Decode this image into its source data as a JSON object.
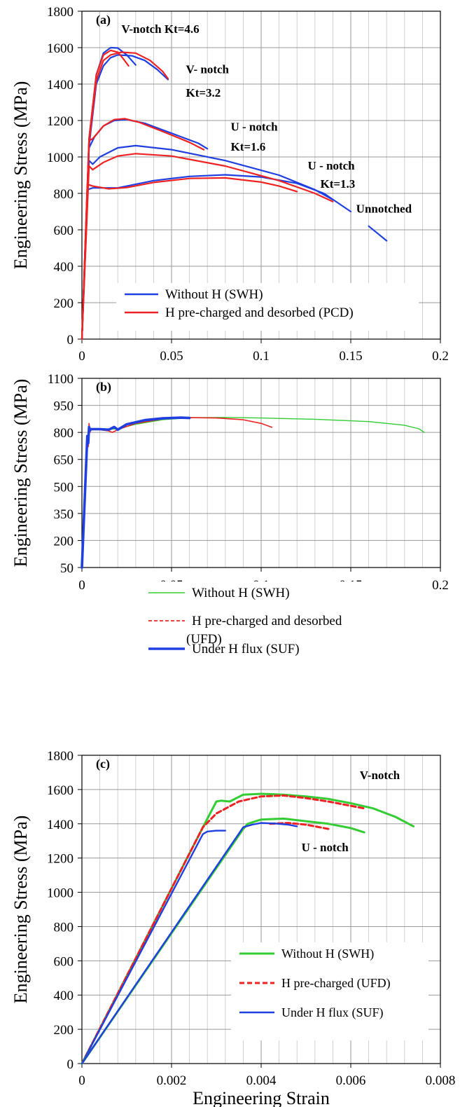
{
  "chart_data": [
    {
      "type": "line",
      "panel_label": "(a)",
      "ylabel": "Engineering  Stress  (MPa)",
      "xlabel": "",
      "xlim": [
        0,
        0.2
      ],
      "ylim": [
        0,
        1800
      ],
      "x_ticks": [
        0,
        0.05,
        0.1,
        0.15,
        0.2
      ],
      "x_tick_labels": [
        "0",
        "0.05",
        "0.1",
        "0.15",
        "0.2"
      ],
      "y_ticks": [
        0,
        200,
        400,
        600,
        800,
        1000,
        1200,
        1400,
        1600,
        1800
      ],
      "y_tick_labels": [
        "0",
        "200",
        "400",
        "600",
        "800",
        "1000",
        "1200",
        "1400",
        "1600",
        "1800"
      ],
      "grid": true,
      "legend_position": "bottom-center",
      "legend": [
        {
          "label": "Without H (SWH)",
          "color": "#1f3fe0"
        },
        {
          "label": "H pre-charged and desorbed (PCD)",
          "color": "#ee2222"
        }
      ],
      "annotations": [
        {
          "text": "V-notch Kt=4.6",
          "x": 0.022,
          "y": 1680
        },
        {
          "text": "V- notch",
          "x": 0.058,
          "y": 1460
        },
        {
          "text": "Kt=3.2",
          "x": 0.058,
          "y": 1330
        },
        {
          "text": "U - notch",
          "x": 0.083,
          "y": 1145
        },
        {
          "text": "Kt=1.6",
          "x": 0.083,
          "y": 1035
        },
        {
          "text": "U - notch",
          "x": 0.126,
          "y": 930
        },
        {
          "text": "Kt=1.3",
          "x": 0.133,
          "y": 830
        },
        {
          "text": "Unnotched",
          "x": 0.153,
          "y": 695
        }
      ],
      "series": [
        {
          "color": "#1f3fe0",
          "dash": "",
          "width": 2.2,
          "x": [
            0,
            0.004,
            0.008,
            0.012,
            0.016,
            0.02,
            0.025,
            0.03
          ],
          "y": [
            0,
            1100,
            1450,
            1570,
            1600,
            1598,
            1560,
            1505
          ]
        },
        {
          "color": "#1f3fe0",
          "dash": "",
          "width": 2.2,
          "x": [
            0,
            0.004,
            0.008,
            0.012,
            0.016,
            0.02,
            0.028,
            0.035,
            0.042,
            0.048
          ],
          "y": [
            0,
            1060,
            1400,
            1500,
            1545,
            1560,
            1555,
            1530,
            1480,
            1425
          ]
        },
        {
          "color": "#1f3fe0",
          "dash": "",
          "width": 2.2,
          "x": [
            0,
            0.004,
            0.007,
            0.012,
            0.018,
            0.025,
            0.035,
            0.05,
            0.065,
            0.07
          ],
          "y": [
            0,
            1050,
            1110,
            1170,
            1200,
            1205,
            1185,
            1130,
            1075,
            1045
          ]
        },
        {
          "color": "#1f3fe0",
          "dash": "",
          "width": 2.2,
          "x": [
            0,
            0.004,
            0.006,
            0.01,
            0.02,
            0.03,
            0.05,
            0.08,
            0.11,
            0.13,
            0.14
          ],
          "y": [
            0,
            980,
            960,
            1000,
            1050,
            1062,
            1040,
            980,
            900,
            820,
            765
          ]
        },
        {
          "color": "#1f3fe0",
          "dash": "",
          "width": 2.2,
          "x": [
            0,
            0.003,
            0.006,
            0.02,
            0.04,
            0.06,
            0.08,
            0.1,
            0.12,
            0.135,
            0.15
          ],
          "y": [
            0,
            820,
            830,
            830,
            870,
            893,
            902,
            890,
            855,
            800,
            700
          ]
        },
        {
          "color": "#1f3fe0",
          "dash": "",
          "width": 2.2,
          "x": [
            0.16,
            0.165,
            0.17
          ],
          "y": [
            620,
            580,
            540
          ]
        },
        {
          "color": "#ee2222",
          "dash": "",
          "width": 2.2,
          "x": [
            0,
            0.004,
            0.008,
            0.012,
            0.016,
            0.02,
            0.023,
            0.026
          ],
          "y": [
            0,
            1100,
            1450,
            1560,
            1585,
            1575,
            1540,
            1500
          ]
        },
        {
          "color": "#ee2222",
          "dash": "",
          "width": 2.2,
          "x": [
            0,
            0.004,
            0.008,
            0.012,
            0.016,
            0.022,
            0.03,
            0.038,
            0.045,
            0.048
          ],
          "y": [
            0,
            1080,
            1420,
            1530,
            1560,
            1575,
            1570,
            1530,
            1470,
            1430
          ]
        },
        {
          "color": "#ee2222",
          "dash": "",
          "width": 2.2,
          "x": [
            0,
            0.004,
            0.006,
            0.012,
            0.018,
            0.024,
            0.032,
            0.045,
            0.06,
            0.068
          ],
          "y": [
            0,
            1090,
            1100,
            1170,
            1205,
            1210,
            1190,
            1140,
            1080,
            1040
          ]
        },
        {
          "color": "#ee2222",
          "dash": "",
          "width": 2.2,
          "x": [
            0,
            0.004,
            0.006,
            0.012,
            0.02,
            0.03,
            0.05,
            0.08,
            0.11,
            0.13,
            0.14
          ],
          "y": [
            0,
            950,
            930,
            970,
            1005,
            1018,
            1005,
            950,
            870,
            800,
            755
          ]
        },
        {
          "color": "#ee2222",
          "dash": "",
          "width": 2.2,
          "x": [
            0,
            0.003,
            0.006,
            0.015,
            0.025,
            0.04,
            0.06,
            0.08,
            0.1,
            0.11,
            0.12
          ],
          "y": [
            0,
            850,
            840,
            825,
            832,
            860,
            882,
            885,
            862,
            840,
            810
          ]
        }
      ]
    },
    {
      "type": "line",
      "panel_label": "(b)",
      "ylabel": "Engineering  Stress  (MPa)",
      "xlabel": "",
      "xlim": [
        0,
        0.2
      ],
      "ylim": [
        50,
        1100
      ],
      "x_ticks": [
        0,
        0.05,
        0.1,
        0.15,
        0.2
      ],
      "x_tick_labels": [
        "0",
        "0.05",
        "0.1",
        "0.15",
        "0.2"
      ],
      "y_ticks": [
        50,
        200,
        350,
        500,
        650,
        800,
        950,
        1100
      ],
      "y_tick_labels": [
        "50",
        "200",
        "350",
        "500",
        "650",
        "800",
        "950",
        "1100"
      ],
      "grid": true,
      "legend_position": "bottom-center",
      "legend": [
        {
          "label": "Without H (SWH)",
          "color": "#33cc33",
          "dash": "",
          "width": 1.4
        },
        {
          "label": "H pre-charged and desorbed",
          "label2": "(UFD)",
          "color": "#ee2222",
          "dash": "5,3",
          "width": 1.8
        },
        {
          "label": "Under H flux (SUF)",
          "color": "#1f3fe0",
          "dash": "",
          "width": 3.6
        }
      ],
      "annotations": [],
      "series": [
        {
          "color": "#33cc33",
          "dash": "",
          "width": 1.4,
          "x": [
            0,
            0.003,
            0.004,
            0.01,
            0.02,
            0.03,
            0.045,
            0.06,
            0.08,
            0.1,
            0.13,
            0.16,
            0.18,
            0.188,
            0.191
          ],
          "y": [
            50,
            760,
            815,
            815,
            820,
            845,
            870,
            882,
            883,
            880,
            873,
            860,
            840,
            820,
            800
          ]
        },
        {
          "color": "#ee2222",
          "dash": "",
          "width": 1.6,
          "x": [
            0,
            0.003,
            0.0035,
            0.004,
            0.0045,
            0.005,
            0.01,
            0.015,
            0.017,
            0.02,
            0.03,
            0.045,
            0.06,
            0.075,
            0.09,
            0.1,
            0.106
          ],
          "y": [
            50,
            750,
            720,
            850,
            800,
            815,
            815,
            808,
            800,
            815,
            850,
            875,
            882,
            880,
            870,
            850,
            828
          ]
        },
        {
          "color": "#1f3fe0",
          "dash": "",
          "width": 3.6,
          "x": [
            0,
            0.003,
            0.0035,
            0.004,
            0.0045,
            0.005,
            0.01,
            0.015,
            0.018,
            0.02,
            0.025,
            0.035,
            0.045,
            0.055,
            0.06
          ],
          "y": [
            50,
            780,
            740,
            830,
            810,
            818,
            818,
            815,
            830,
            815,
            845,
            868,
            878,
            882,
            880
          ]
        }
      ]
    },
    {
      "type": "line",
      "panel_label": "(c)",
      "ylabel": "Engineering  Stress  (MPa)",
      "xlabel": "Engineering Strain",
      "xlim": [
        0,
        0.008
      ],
      "ylim": [
        0,
        1800
      ],
      "x_ticks": [
        0,
        0.002,
        0.004,
        0.006,
        0.008
      ],
      "x_tick_labels": [
        "0",
        "0.002",
        "0.004",
        "0.006",
        "0.008"
      ],
      "y_ticks": [
        0,
        200,
        400,
        600,
        800,
        1000,
        1200,
        1400,
        1600,
        1800
      ],
      "y_tick_labels": [
        "0",
        "200",
        "400",
        "600",
        "800",
        "1000",
        "1200",
        "1400",
        "1600",
        "1800"
      ],
      "grid": true,
      "legend_position": "bottom-right",
      "legend": [
        {
          "label": "Without H (SWH)",
          "color": "#33cc33",
          "dash": "",
          "width": 3
        },
        {
          "label": "H pre-charged (UFD)",
          "color": "#ee2222",
          "dash": "7,4",
          "width": 3
        },
        {
          "label": "Under H flux (SUF)",
          "color": "#1f3fe0",
          "dash": "",
          "width": 2.4
        }
      ],
      "annotations": [
        {
          "text": "V-notch",
          "x": 0.0062,
          "y": 1660
        },
        {
          "text": "U - notch",
          "x": 0.0049,
          "y": 1240
        }
      ],
      "series": [
        {
          "color": "#33cc33",
          "dash": "",
          "width": 3,
          "x": [
            0,
            0.0027,
            0.003,
            0.0031,
            0.0033,
            0.0036,
            0.004,
            0.0045,
            0.005,
            0.0055,
            0.006,
            0.0065,
            0.007,
            0.0074
          ],
          "y": [
            0,
            1380,
            1530,
            1535,
            1530,
            1570,
            1575,
            1570,
            1560,
            1545,
            1520,
            1490,
            1440,
            1385
          ]
        },
        {
          "color": "#ee2222",
          "dash": "7,4",
          "width": 3,
          "x": [
            0,
            0.0027,
            0.003,
            0.0035,
            0.004,
            0.0045,
            0.005,
            0.0055,
            0.006,
            0.0063
          ],
          "y": [
            0,
            1380,
            1460,
            1530,
            1560,
            1565,
            1550,
            1530,
            1505,
            1490
          ]
        },
        {
          "color": "#1f3fe0",
          "dash": "",
          "width": 2.4,
          "x": [
            0,
            0.0027,
            0.0028,
            0.003,
            0.0032
          ],
          "y": [
            0,
            1340,
            1355,
            1360,
            1360
          ]
        },
        {
          "color": "#33cc33",
          "dash": "",
          "width": 3,
          "x": [
            0,
            0.0036,
            0.0037,
            0.004,
            0.0045,
            0.005,
            0.0055,
            0.006,
            0.0063
          ],
          "y": [
            0,
            1370,
            1400,
            1425,
            1430,
            1415,
            1400,
            1375,
            1350
          ]
        },
        {
          "color": "#ee2222",
          "dash": "7,4",
          "width": 3,
          "x": [
            0.0042,
            0.0046,
            0.005,
            0.0055
          ],
          "y": [
            1400,
            1405,
            1395,
            1370
          ]
        },
        {
          "color": "#1f3fe0",
          "dash": "",
          "width": 2.4,
          "x": [
            0,
            0.0036,
            0.0038,
            0.004,
            0.0043,
            0.0046,
            0.0048
          ],
          "y": [
            0,
            1380,
            1395,
            1405,
            1402,
            1395,
            1385
          ]
        }
      ]
    }
  ]
}
